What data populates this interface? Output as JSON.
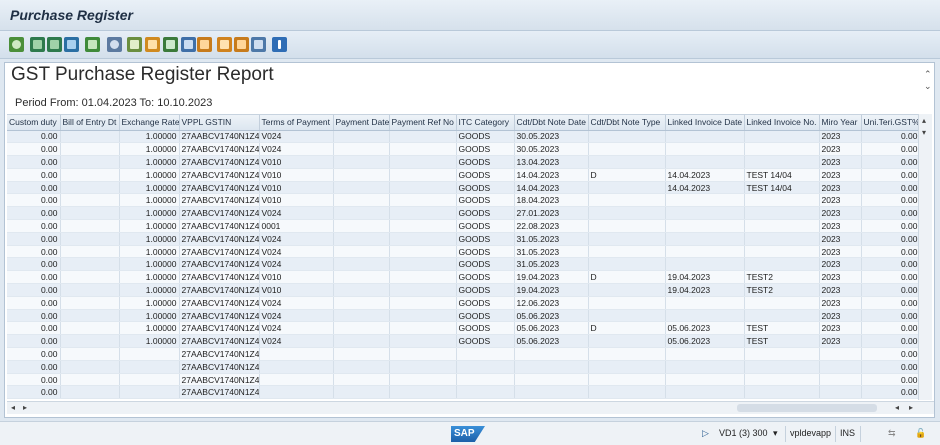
{
  "window": {
    "title": "Purchase Register"
  },
  "report": {
    "title": "GST Purchase Register Report",
    "period": "Period From: 01.04.2023 To: 10.10.2023"
  },
  "toolbar_icons": [
    "zoom-icon",
    "sort-ascending-icon",
    "sort-descending-icon",
    "filter-icon",
    "sum-icon",
    "subtotal-icon",
    "print-preview-icon",
    "export-icon",
    "spreadsheet-icon",
    "word-processing-icon",
    "layout-icon",
    "select-layout-icon",
    "save-layout-icon",
    "change-layout-icon",
    "info-icon"
  ],
  "columns": [
    "Custom duty",
    "Bill of Entry Dt",
    "Exchange Rate",
    "VPPL GSTIN",
    "Terms of Payment",
    "Payment Date",
    "Payment Ref No",
    "ITC Category",
    "Cdt/Dbt Note Date",
    "Cdt/Dbt Note Type",
    "Linked Invoice Date",
    "Linked Invoice No.",
    "Miro Year",
    "Uni.Teri.GST%"
  ],
  "rows": [
    [
      "0.00",
      "",
      "1.00000",
      "27AABCV1740N1Z4",
      "V024",
      "",
      "",
      "GOODS",
      "30.05.2023",
      "",
      "",
      "",
      "2023",
      "0.00"
    ],
    [
      "0.00",
      "",
      "1.00000",
      "27AABCV1740N1Z4",
      "V024",
      "",
      "",
      "GOODS",
      "30.05.2023",
      "",
      "",
      "",
      "2023",
      "0.00"
    ],
    [
      "0.00",
      "",
      "1.00000",
      "27AABCV1740N1Z4",
      "V010",
      "",
      "",
      "GOODS",
      "13.04.2023",
      "",
      "",
      "",
      "2023",
      "0.00"
    ],
    [
      "0.00",
      "",
      "1.00000",
      "27AABCV1740N1Z4",
      "V010",
      "",
      "",
      "GOODS",
      "14.04.2023",
      "D",
      "14.04.2023",
      "TEST 14/04",
      "2023",
      "0.00"
    ],
    [
      "0.00",
      "",
      "1.00000",
      "27AABCV1740N1Z4",
      "V010",
      "",
      "",
      "GOODS",
      "14.04.2023",
      "",
      "14.04.2023",
      "TEST 14/04",
      "2023",
      "0.00"
    ],
    [
      "0.00",
      "",
      "1.00000",
      "27AABCV1740N1Z4",
      "V010",
      "",
      "",
      "GOODS",
      "18.04.2023",
      "",
      "",
      "",
      "2023",
      "0.00"
    ],
    [
      "0.00",
      "",
      "1.00000",
      "27AABCV1740N1Z4",
      "V024",
      "",
      "",
      "GOODS",
      "27.01.2023",
      "",
      "",
      "",
      "2023",
      "0.00"
    ],
    [
      "0.00",
      "",
      "1.00000",
      "27AABCV1740N1Z4",
      "0001",
      "",
      "",
      "GOODS",
      "22.08.2023",
      "",
      "",
      "",
      "2023",
      "0.00"
    ],
    [
      "0.00",
      "",
      "1.00000",
      "27AABCV1740N1Z4",
      "V024",
      "",
      "",
      "GOODS",
      "31.05.2023",
      "",
      "",
      "",
      "2023",
      "0.00"
    ],
    [
      "0.00",
      "",
      "1.00000",
      "27AABCV1740N1Z4",
      "V024",
      "",
      "",
      "GOODS",
      "31.05.2023",
      "",
      "",
      "",
      "2023",
      "0.00"
    ],
    [
      "0.00",
      "",
      "1.00000",
      "27AABCV1740N1Z4",
      "V024",
      "",
      "",
      "GOODS",
      "31.05.2023",
      "",
      "",
      "",
      "2023",
      "0.00"
    ],
    [
      "0.00",
      "",
      "1.00000",
      "27AABCV1740N1Z4",
      "V010",
      "",
      "",
      "GOODS",
      "19.04.2023",
      "D",
      "19.04.2023",
      "TEST2",
      "2023",
      "0.00"
    ],
    [
      "0.00",
      "",
      "1.00000",
      "27AABCV1740N1Z4",
      "V010",
      "",
      "",
      "GOODS",
      "19.04.2023",
      "",
      "19.04.2023",
      "TEST2",
      "2023",
      "0.00"
    ],
    [
      "0.00",
      "",
      "1.00000",
      "27AABCV1740N1Z4",
      "V024",
      "",
      "",
      "GOODS",
      "12.06.2023",
      "",
      "",
      "",
      "2023",
      "0.00"
    ],
    [
      "0.00",
      "",
      "1.00000",
      "27AABCV1740N1Z4",
      "V024",
      "",
      "",
      "GOODS",
      "05.06.2023",
      "",
      "",
      "",
      "2023",
      "0.00"
    ],
    [
      "0.00",
      "",
      "1.00000",
      "27AABCV1740N1Z4",
      "V024",
      "",
      "",
      "GOODS",
      "05.06.2023",
      "D",
      "05.06.2023",
      "TEST",
      "2023",
      "0.00"
    ],
    [
      "0.00",
      "",
      "1.00000",
      "27AABCV1740N1Z4",
      "V024",
      "",
      "",
      "GOODS",
      "05.06.2023",
      "",
      "05.06.2023",
      "TEST",
      "2023",
      "0.00"
    ],
    [
      "0.00",
      "",
      "",
      "27AABCV1740N1Z4",
      "",
      "",
      "",
      "",
      "",
      "",
      "",
      "",
      "",
      "0.00"
    ],
    [
      "0.00",
      "",
      "",
      "27AABCV1740N1Z4",
      "",
      "",
      "",
      "",
      "",
      "",
      "",
      "",
      "",
      "0.00"
    ],
    [
      "0.00",
      "",
      "",
      "27AABCV1740N1Z4",
      "",
      "",
      "",
      "",
      "",
      "",
      "",
      "",
      "",
      "0.00"
    ],
    [
      "0.00",
      "",
      "",
      "27AABCV1740N1Z4",
      "",
      "",
      "",
      "",
      "",
      "",
      "",
      "",
      "",
      "0.00"
    ]
  ],
  "status": {
    "logo": "SAP",
    "system": "VD1 (3) 300",
    "server": "vpldevapp",
    "mode": "INS"
  }
}
